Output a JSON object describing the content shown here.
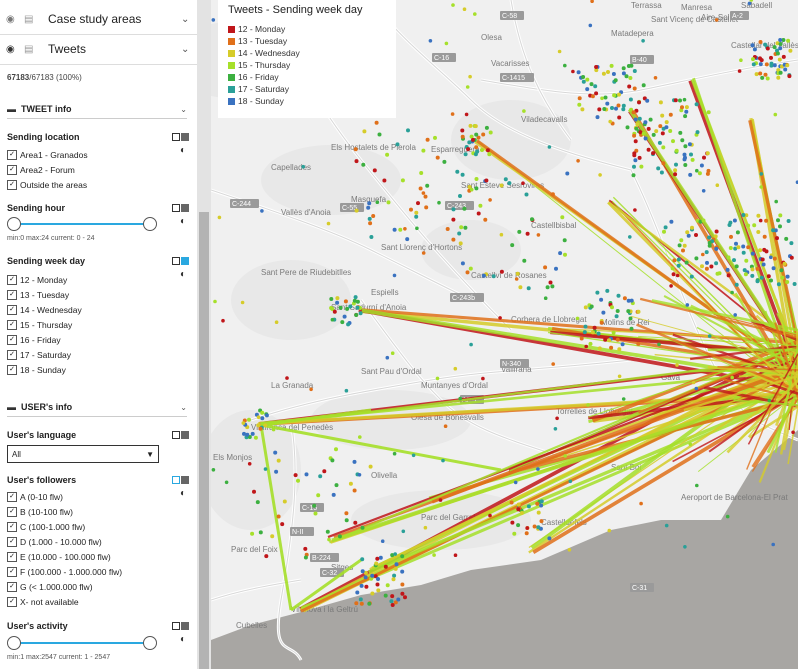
{
  "layers": [
    {
      "name": "Case study areas"
    },
    {
      "name": "Tweets"
    }
  ],
  "count": {
    "filtered": "67183",
    "total": "/67183 (100%)"
  },
  "tweet_info": {
    "title": "TWEET info",
    "sending_location": {
      "label": "Sending location",
      "options": [
        "Area1 - Granados",
        "Area2 - Forum",
        "Outside the areas"
      ]
    },
    "sending_hour": {
      "label": "Sending hour",
      "range_text": "min:0 max:24 current: 0 - 24",
      "min": 0,
      "max": 24,
      "low": 0,
      "high": 24
    },
    "sending_week_day": {
      "label": "Sending week day",
      "options": [
        "12 - Monday",
        "13 - Tuesday",
        "14 - Wednesday",
        "15 - Thursday",
        "16 - Friday",
        "17 - Saturday",
        "18 - Sunday"
      ]
    }
  },
  "user_info": {
    "title": "USER's info",
    "language": {
      "label": "User's language",
      "selected": "All"
    },
    "followers": {
      "label": "User's followers",
      "options": [
        "A (0-10 flw)",
        "B (10-100 flw)",
        "C (100-1.000 flw)",
        "D (1.000 - 10.000 flw)",
        "E (10.000 - 100.000 flw)",
        "F (100.000 - 1.000.000 flw)",
        "G (< 1.000.000 flw)",
        "X- not available"
      ]
    },
    "activity": {
      "label": "User's activity",
      "range_text": "min:1 max:2547 current: 1 - 2547",
      "min": 1,
      "max": 2547,
      "low": 1,
      "high": 2547
    }
  },
  "legend": {
    "title": "Tweets - Sending week day",
    "items": [
      {
        "label": "12 - Monday",
        "color": "#c0161a"
      },
      {
        "label": "13 - Tuesday",
        "color": "#e0701a"
      },
      {
        "label": "14 - Wednesday",
        "color": "#d6cc2a"
      },
      {
        "label": "15 - Thursday",
        "color": "#a6e02a"
      },
      {
        "label": "16 - Friday",
        "color": "#3cb040"
      },
      {
        "label": "17 - Saturday",
        "color": "#2aa098"
      },
      {
        "label": "18 - Sunday",
        "color": "#3a72c0"
      }
    ]
  },
  "map_labels": [
    "Manresa",
    "Sant Vicenç de Castellet",
    "Terrassa",
    "Sabadell",
    "Aire-Sol",
    "Matadepera",
    "Castellar del Vallès",
    "Olesa",
    "Vacarisses",
    "Viladecavalls",
    "Els Hostalets de Pierola",
    "Esparreguera",
    "Capellades",
    "Masquefa",
    "Sant Esteve Sesrovires",
    "Castellbisbal",
    "Vallès d'Anoia",
    "Sant Llorenç d'Hortons",
    "Sant Pere de Riudebitlles",
    "Castellví de Rosanes",
    "Espiells",
    "Sant Sadurní d'Anoia",
    "Corbera de Llobregat",
    "Molins de Rei",
    "Vallirana",
    "Sant Pau d'Ordal",
    "Muntanyes d'Ordal",
    "La Granada",
    "Olesa de Bonesvalls",
    "Torrelles de Llobregat",
    "Vilafranca del Penedès",
    "Els Monjos",
    "Olivella",
    "Aeroport de Barcelona-El Prat",
    "Parc del Garraf",
    "Castelldefels",
    "Parc del Foix",
    "Sitges",
    "Vilanova i la Geltrú",
    "Cubelles",
    "Gavà",
    "Sant Boi"
  ],
  "road_labels": [
    "C-58",
    "C-16",
    "C-1415",
    "B-40",
    "C-243",
    "A-2",
    "N-340",
    "AP-7",
    "C-15",
    "C-31",
    "C-32",
    "B-224",
    "C-244",
    "C-55",
    "C-243b",
    "N-II"
  ]
}
